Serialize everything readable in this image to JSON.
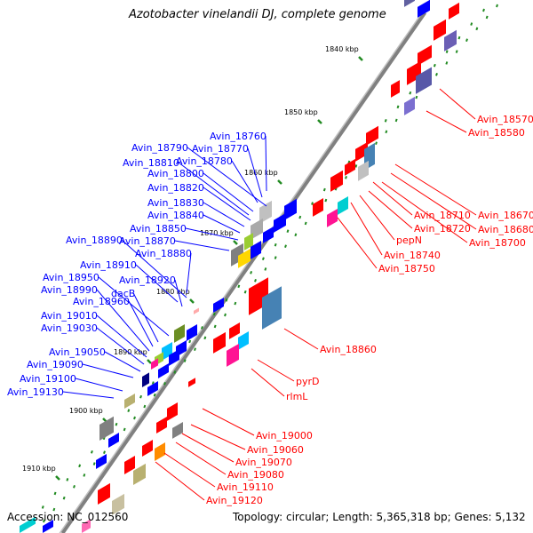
{
  "title": "Azotobacter vinelandii DJ, complete genome",
  "footer": {
    "accession_label": "Accession:",
    "accession": "NC_012560",
    "topology_label": "Topology:",
    "topology": "circular",
    "length_label": "Length:",
    "length": "5,365,318 bp",
    "genes_label": "Genes:",
    "genes": "5,132"
  },
  "ruler": {
    "ticks": [
      "1840 kbp",
      "1850 kbp",
      "1860 kbp",
      "1870 kbp",
      "1880 kbp",
      "1890 kbp",
      "1900 kbp",
      "1910 kbp"
    ]
  },
  "colors": {
    "forward_strand_label": "#0000ff",
    "reverse_strand_label": "#ff0000",
    "backbone": "#808080"
  },
  "genes_forward": [
    "Avin_18760",
    "Avin_18770",
    "Avin_18780",
    "Avin_18790",
    "Avin_18800",
    "Avin_18810",
    "Avin_18820",
    "Avin_18830",
    "Avin_18840",
    "Avin_18850",
    "Avin_18870",
    "Avin_18880",
    "Avin_18890",
    "Avin_18910",
    "Avin_18920",
    "Avin_18950",
    "dacB",
    "Avin_18960",
    "Avin_18990",
    "Avin_19010",
    "Avin_19030",
    "Avin_19050",
    "Avin_19090",
    "Avin_19100",
    "Avin_19130"
  ],
  "genes_reverse": [
    "Avin_18570",
    "Avin_18580",
    "Avin_18670",
    "Avin_18680",
    "Avin_18700",
    "Avin_18710",
    "Avin_18720",
    "pepN",
    "Avin_18740",
    "Avin_18750",
    "Avin_18860",
    "pyrD",
    "rlmL",
    "Avin_19000",
    "Avin_19060",
    "Avin_19070",
    "Avin_19080",
    "Avin_19110",
    "Avin_19120"
  ]
}
